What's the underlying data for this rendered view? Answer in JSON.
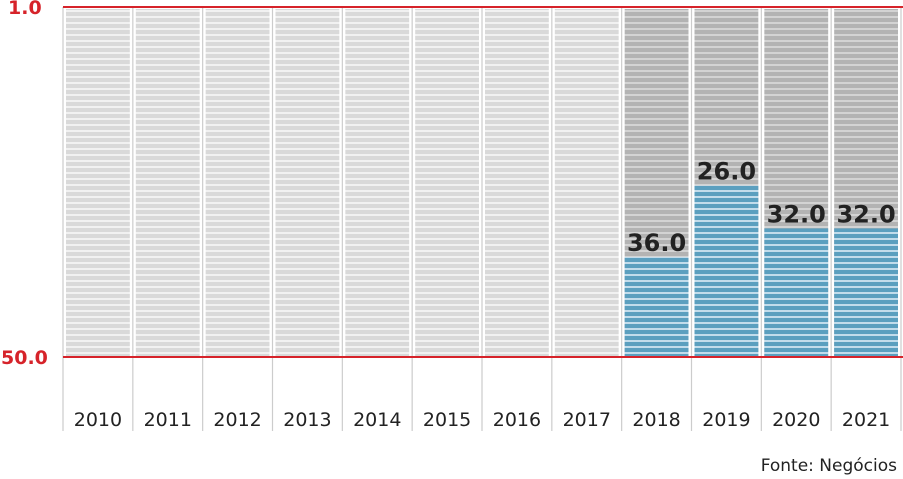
{
  "chart_data": {
    "type": "bar",
    "categories": [
      "2010",
      "2011",
      "2012",
      "2013",
      "2014",
      "2015",
      "2016",
      "2017",
      "2018",
      "2019",
      "2020",
      "2021"
    ],
    "values": [
      null,
      null,
      null,
      null,
      null,
      null,
      null,
      null,
      36.0,
      26.0,
      32.0,
      32.0
    ],
    "data_labels": [
      "",
      "",
      "",
      "",
      "",
      "",
      "",
      "",
      "36.0",
      "26.0",
      "32.0",
      "32.0"
    ],
    "ylim": [
      50.0,
      1.0
    ],
    "ytick_labels": [
      "1.0",
      "50.0"
    ],
    "y_axis": "inverted rank scale (1.0 at top, 50.0 at bottom)",
    "grid": false,
    "colors": {
      "value_bar": "#5b9fbf",
      "empty_column_light": "#d9d9d9",
      "empty_column_dark": "#b5b5b5",
      "axis_line": "#d6232a",
      "text": "#222222"
    }
  },
  "source": "Fonte: Negócios"
}
